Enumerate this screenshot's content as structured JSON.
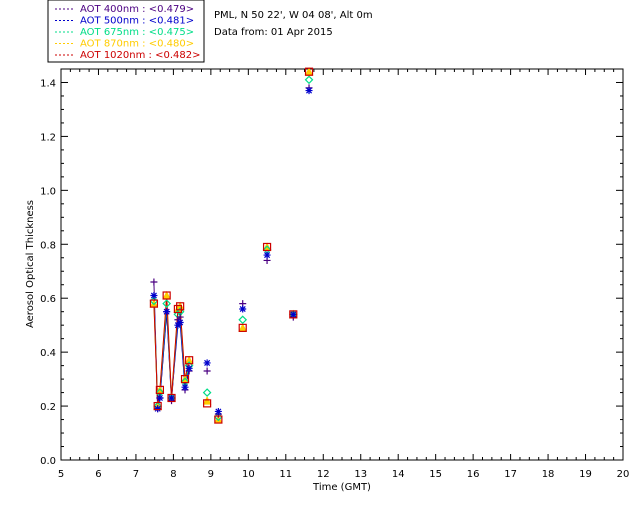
{
  "info": {
    "site": "PML, N 50 22', W 04 08', Alt 0m",
    "date_line": "Data from: 01 Apr 2015"
  },
  "legend": [
    {
      "label": "AOT  400nm : <0.479>",
      "color": "#4b0082"
    },
    {
      "label": "AOT  500nm : <0.481>",
      "color": "#0000cc"
    },
    {
      "label": "AOT  675nm : <0.475>",
      "color": "#00dd88"
    },
    {
      "label": "AOT  870nm : <0.480>",
      "color": "#ffcc00"
    },
    {
      "label": "AOT 1020nm : <0.482>",
      "color": "#cc0000"
    }
  ],
  "chart_data": {
    "type": "scatter",
    "xlabel": "Time (GMT)",
    "ylabel": "Aerosol Optical Thickness",
    "xlim": [
      5,
      20
    ],
    "ylim": [
      0.0,
      1.45
    ],
    "xticks": [
      5,
      6,
      7,
      8,
      9,
      10,
      11,
      12,
      13,
      14,
      15,
      16,
      17,
      18,
      19,
      20
    ],
    "yticks": [
      "0.0",
      "0.2",
      "0.4",
      "0.6",
      "0.8",
      "1.0",
      "1.2",
      "1.4"
    ],
    "grid": false,
    "legend_position": "top-left outside",
    "line_segment_end": 8.45,
    "x": [
      7.48,
      7.58,
      7.64,
      7.82,
      7.95,
      8.12,
      8.18,
      8.31,
      8.42,
      8.9,
      9.2,
      9.85,
      10.5,
      11.2,
      11.62
    ],
    "series": [
      {
        "name": "AOT  400nm",
        "color": "#4b0082",
        "marker": "plus",
        "values": [
          0.66,
          0.19,
          0.23,
          0.55,
          0.22,
          0.52,
          0.53,
          0.26,
          0.33,
          0.33,
          0.17,
          0.58,
          0.74,
          0.53,
          1.38
        ]
      },
      {
        "name": "AOT  500nm",
        "color": "#0000cc",
        "marker": "asterisk",
        "values": [
          0.61,
          0.19,
          0.23,
          0.55,
          0.23,
          0.5,
          0.51,
          0.27,
          0.34,
          0.36,
          0.18,
          0.56,
          0.76,
          0.54,
          1.37
        ]
      },
      {
        "name": "AOT  675nm",
        "color": "#00dd88",
        "marker": "diamond",
        "values": [
          0.59,
          0.2,
          0.25,
          0.58,
          0.23,
          0.54,
          0.55,
          0.29,
          0.35,
          0.25,
          0.16,
          0.52,
          0.78,
          0.54,
          1.41
        ]
      },
      {
        "name": "AOT  870nm",
        "color": "#ffcc00",
        "marker": "triangle",
        "values": [
          0.58,
          0.2,
          0.26,
          0.61,
          0.23,
          0.56,
          0.57,
          0.3,
          0.37,
          0.22,
          0.15,
          0.49,
          0.79,
          0.54,
          1.44
        ]
      },
      {
        "name": "AOT 1020nm",
        "color": "#cc0000",
        "marker": "square",
        "values": [
          0.58,
          0.2,
          0.26,
          0.61,
          0.23,
          0.56,
          0.57,
          0.3,
          0.37,
          0.21,
          0.15,
          0.49,
          0.79,
          0.54,
          1.44
        ]
      }
    ]
  }
}
